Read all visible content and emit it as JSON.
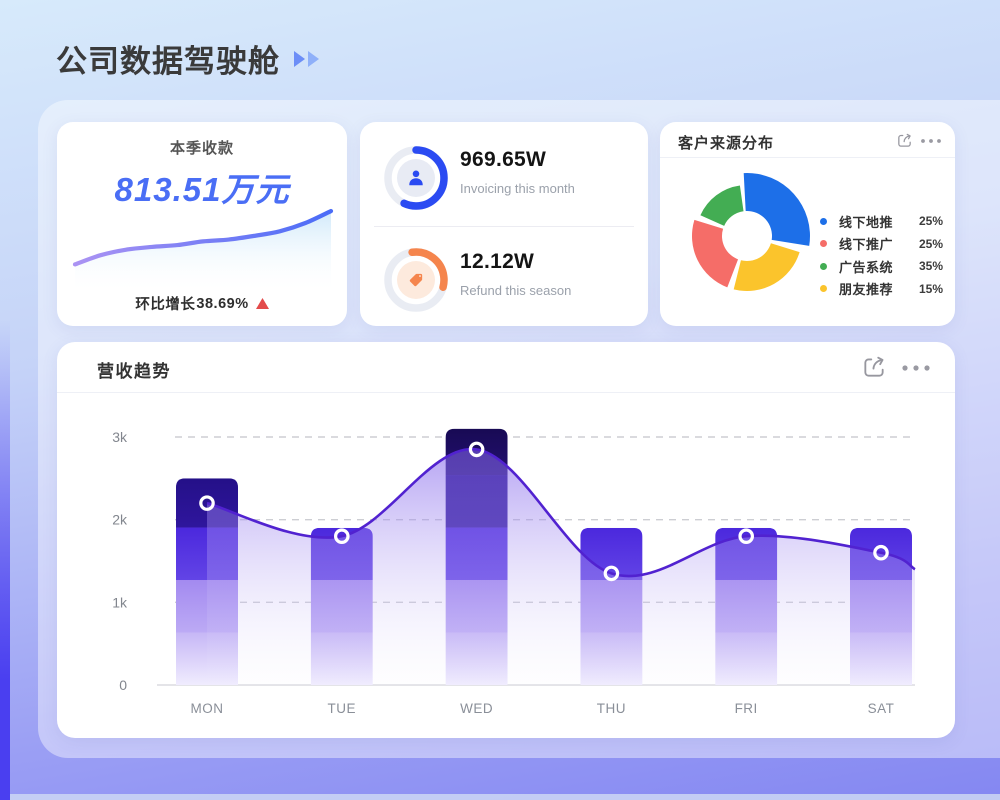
{
  "header": {
    "title": "公司数据驾驶舱",
    "arrows_icon": "double-play-arrows"
  },
  "cards": {
    "quarter": {
      "title": "本季收款",
      "amount": "813.51万元",
      "growth_label": "环比增长",
      "growth_value": "38.69%",
      "growth_direction": "up",
      "growth_color": "#e34b4b",
      "amount_color": "#4a6ef5"
    },
    "kpi": {
      "items": [
        {
          "value": "969.65W",
          "label": "Invoicing this month",
          "icon": "person-icon",
          "accent": "#2b4bf2",
          "inner_bg": "#e8ebf4",
          "arc_sweep_deg": 205,
          "arc_start_deg": 0
        },
        {
          "value": "12.12W",
          "label": "Refund this season",
          "icon": "tag-icon",
          "accent": "#f5854d",
          "inner_bg": "#fdeadd",
          "arc_sweep_deg": 113,
          "arc_start_deg": -8
        }
      ]
    },
    "sources": {
      "title": "客户来源分布"
    },
    "trend": {
      "title": "营收趋势"
    }
  },
  "chart_data": [
    {
      "id": "quarter_spark",
      "type": "line",
      "values": [
        30,
        40,
        46,
        49,
        51,
        55,
        57,
        61,
        66,
        75,
        88
      ],
      "value_range": [
        0,
        100
      ],
      "stroke_gradient": [
        "#ab93f3",
        "#4a6cf7"
      ],
      "area_gradient": [
        "rgba(206,232,250,0.95)",
        "rgba(255,255,255,0)"
      ],
      "grid": "off",
      "note": "decorative sparkline under 本季收款 amount"
    },
    {
      "id": "customer_sources",
      "type": "pie",
      "title": "客户来源分布",
      "legend_position": "right",
      "slices": [
        {
          "label": "线下地推",
          "percent": 25,
          "percent_text": "25%",
          "color": "#1d6fe8",
          "arc": {
            "start": -3,
            "end": 99,
            "outer_r": 63,
            "inner_r": 25
          }
        },
        {
          "label": "线下推广",
          "percent": 25,
          "percent_text": "25%",
          "color": "#f56d68",
          "arc": {
            "start": 201,
            "end": 287,
            "outer_r": 55,
            "inner_r": 25
          }
        },
        {
          "label": "广告系统",
          "percent": 35,
          "percent_text": "35%",
          "color": "#43ad53",
          "arc": {
            "start": 294,
            "end": 352,
            "outer_r": 51,
            "inner_r": 25
          }
        },
        {
          "label": "朋友推荐",
          "percent": 15,
          "percent_text": "15%",
          "color": "#fbc42c",
          "arc": {
            "start": 107,
            "end": 194,
            "outer_r": 55,
            "inner_r": 25
          }
        }
      ]
    },
    {
      "id": "revenue_trend",
      "type": "bar+line",
      "title": "营收趋势",
      "categories": [
        "MON",
        "TUE",
        "WED",
        "THU",
        "FRI",
        "SAT"
      ],
      "series": [
        {
          "name": "revenue-bars",
          "type": "bar",
          "values": [
            2500,
            1900,
            3100,
            1900,
            1900,
            1900
          ]
        },
        {
          "name": "revenue-line",
          "type": "line",
          "values": [
            2200,
            1800,
            2850,
            1350,
            1800,
            1600
          ],
          "edge_value": 1400
        }
      ],
      "yticks": [
        "0",
        "1k",
        "2k",
        "3k"
      ],
      "ylim": [
        0,
        3300
      ],
      "grid": "dashed",
      "band_step": 635,
      "band_colors": [
        [
          "#c6b7f6",
          "#f0ecfe"
        ],
        [
          "#a38af0",
          "#bcaaf5"
        ],
        [
          "#4b28dd",
          "#6244e6"
        ],
        [
          "#241088",
          "#2f169d"
        ],
        [
          "#180a54",
          "#231071"
        ]
      ],
      "line_color": "#5122d0",
      "area_gradient": [
        "rgba(118,84,233,0.62)",
        "rgba(240,238,252,0.08)"
      ]
    }
  ]
}
